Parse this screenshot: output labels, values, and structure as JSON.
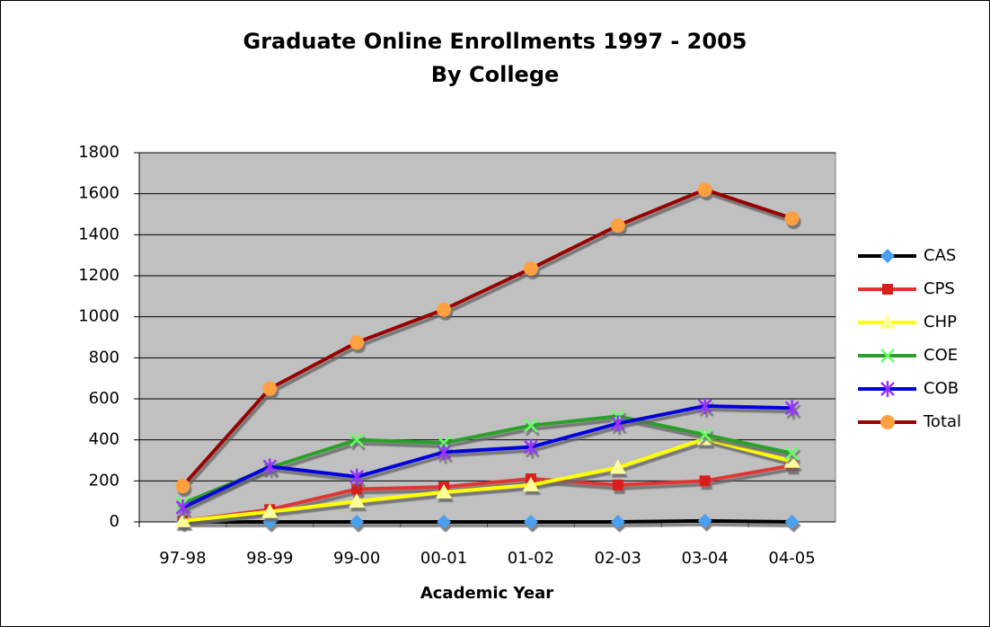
{
  "chart_data": {
    "type": "line",
    "title": [
      "Graduate Online Enrollments 1997 - 2005",
      "By College"
    ],
    "x_label": "Academic Year",
    "categories": [
      "97-98",
      "98-99",
      "99-00",
      "00-01",
      "01-02",
      "02-03",
      "03-04",
      "04-05"
    ],
    "series": [
      {
        "name": "CAS",
        "color": "#000000",
        "marker_color": "#4a9ff0",
        "marker": "diamond",
        "values": [
          0,
          0,
          0,
          0,
          0,
          0,
          5,
          0
        ]
      },
      {
        "name": "CPS",
        "color": "#e03434",
        "marker_color": "#d91c1c",
        "marker": "square",
        "values": [
          5,
          60,
          160,
          170,
          210,
          180,
          200,
          275
        ]
      },
      {
        "name": "CHP",
        "color": "#ffff00",
        "marker_color": "#ffff99",
        "marker": "triangle",
        "values": [
          5,
          50,
          100,
          145,
          180,
          265,
          405,
          295
        ]
      },
      {
        "name": "COE",
        "color": "#2ca02c",
        "marker_color": "#66ff66",
        "marker": "x",
        "values": [
          90,
          265,
          400,
          385,
          470,
          515,
          425,
          335
        ]
      },
      {
        "name": "COB",
        "color": "#0000dd",
        "marker_color": "#9933ff",
        "marker": "star",
        "values": [
          70,
          270,
          220,
          340,
          365,
          480,
          565,
          555
        ]
      },
      {
        "name": "Total",
        "color": "#990000",
        "marker_color": "#ffa040",
        "marker": "circle",
        "values": [
          175,
          650,
          875,
          1035,
          1235,
          1445,
          1620,
          1480
        ]
      }
    ],
    "ylim": [
      0,
      1800
    ],
    "yticks": [
      0,
      200,
      400,
      600,
      800,
      1000,
      1200,
      1400,
      1600,
      1800
    ],
    "grid": true,
    "legend": "right",
    "plot_background": "#c0c0c0"
  }
}
